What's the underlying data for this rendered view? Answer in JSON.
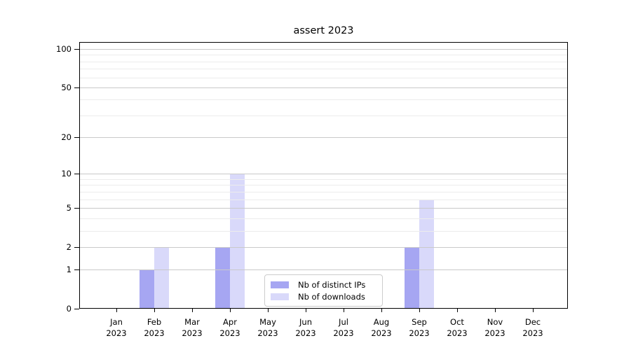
{
  "title": "assert 2023",
  "chart_data": {
    "type": "bar",
    "title": "assert 2023",
    "x_categories": [
      {
        "month": "Jan",
        "year": "2023"
      },
      {
        "month": "Feb",
        "year": "2023"
      },
      {
        "month": "Mar",
        "year": "2023"
      },
      {
        "month": "Apr",
        "year": "2023"
      },
      {
        "month": "May",
        "year": "2023"
      },
      {
        "month": "Jun",
        "year": "2023"
      },
      {
        "month": "Jul",
        "year": "2023"
      },
      {
        "month": "Aug",
        "year": "2023"
      },
      {
        "month": "Sep",
        "year": "2023"
      },
      {
        "month": "Oct",
        "year": "2023"
      },
      {
        "month": "Nov",
        "year": "2023"
      },
      {
        "month": "Dec",
        "year": "2023"
      }
    ],
    "series": [
      {
        "name": "Nb of distinct IPs",
        "color": "#a6a6f2",
        "values": [
          0,
          1,
          0,
          2,
          0,
          0,
          0,
          0,
          2,
          0,
          0,
          0
        ]
      },
      {
        "name": "Nb of downloads",
        "color": "#d9d9fa",
        "values": [
          0,
          2,
          0,
          10,
          0,
          0,
          0,
          0,
          6,
          0,
          0,
          0
        ]
      }
    ],
    "y_axis": {
      "scale": "log10(1+v)",
      "major_ticks": [
        0,
        1,
        2,
        5,
        10,
        20,
        50,
        100
      ],
      "minor_gridlines": [
        3,
        4,
        6,
        7,
        8,
        9,
        30,
        40,
        60,
        70,
        80,
        90
      ],
      "range": [
        0,
        100
      ]
    },
    "grid": "horizontal major+minor, drawn over bars",
    "legend": {
      "position": "bottom-center",
      "items": [
        "Nb of distinct IPs",
        "Nb of downloads"
      ]
    }
  }
}
